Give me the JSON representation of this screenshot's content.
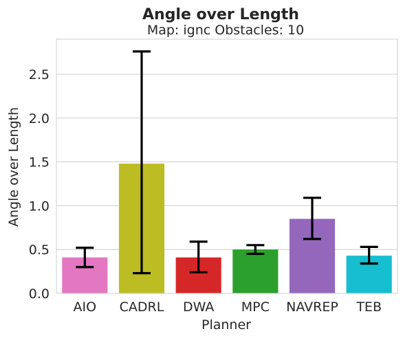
{
  "chart_data": {
    "type": "bar",
    "title": "Angle over Length",
    "subtitle": "Map: ignc Obstacles: 10",
    "xlabel": "Planner",
    "ylabel": "Angle over Length",
    "categories": [
      "AIO",
      "CADRL",
      "DWA",
      "MPC",
      "NAVREP",
      "TEB"
    ],
    "values": [
      0.41,
      1.48,
      0.41,
      0.5,
      0.85,
      0.43
    ],
    "error_low": [
      0.3,
      0.23,
      0.24,
      0.45,
      0.62,
      0.34
    ],
    "error_high": [
      0.52,
      2.76,
      0.59,
      0.55,
      1.09,
      0.53
    ],
    "colors": [
      "#e377c2",
      "#bcbd22",
      "#d62728",
      "#2ca02c",
      "#9467bd",
      "#17becf"
    ],
    "ylim": [
      0,
      2.9
    ],
    "yticks": [
      "0.0",
      "0.5",
      "1.0",
      "1.5",
      "2.0",
      "2.5"
    ],
    "grid": true,
    "legend": "none"
  }
}
